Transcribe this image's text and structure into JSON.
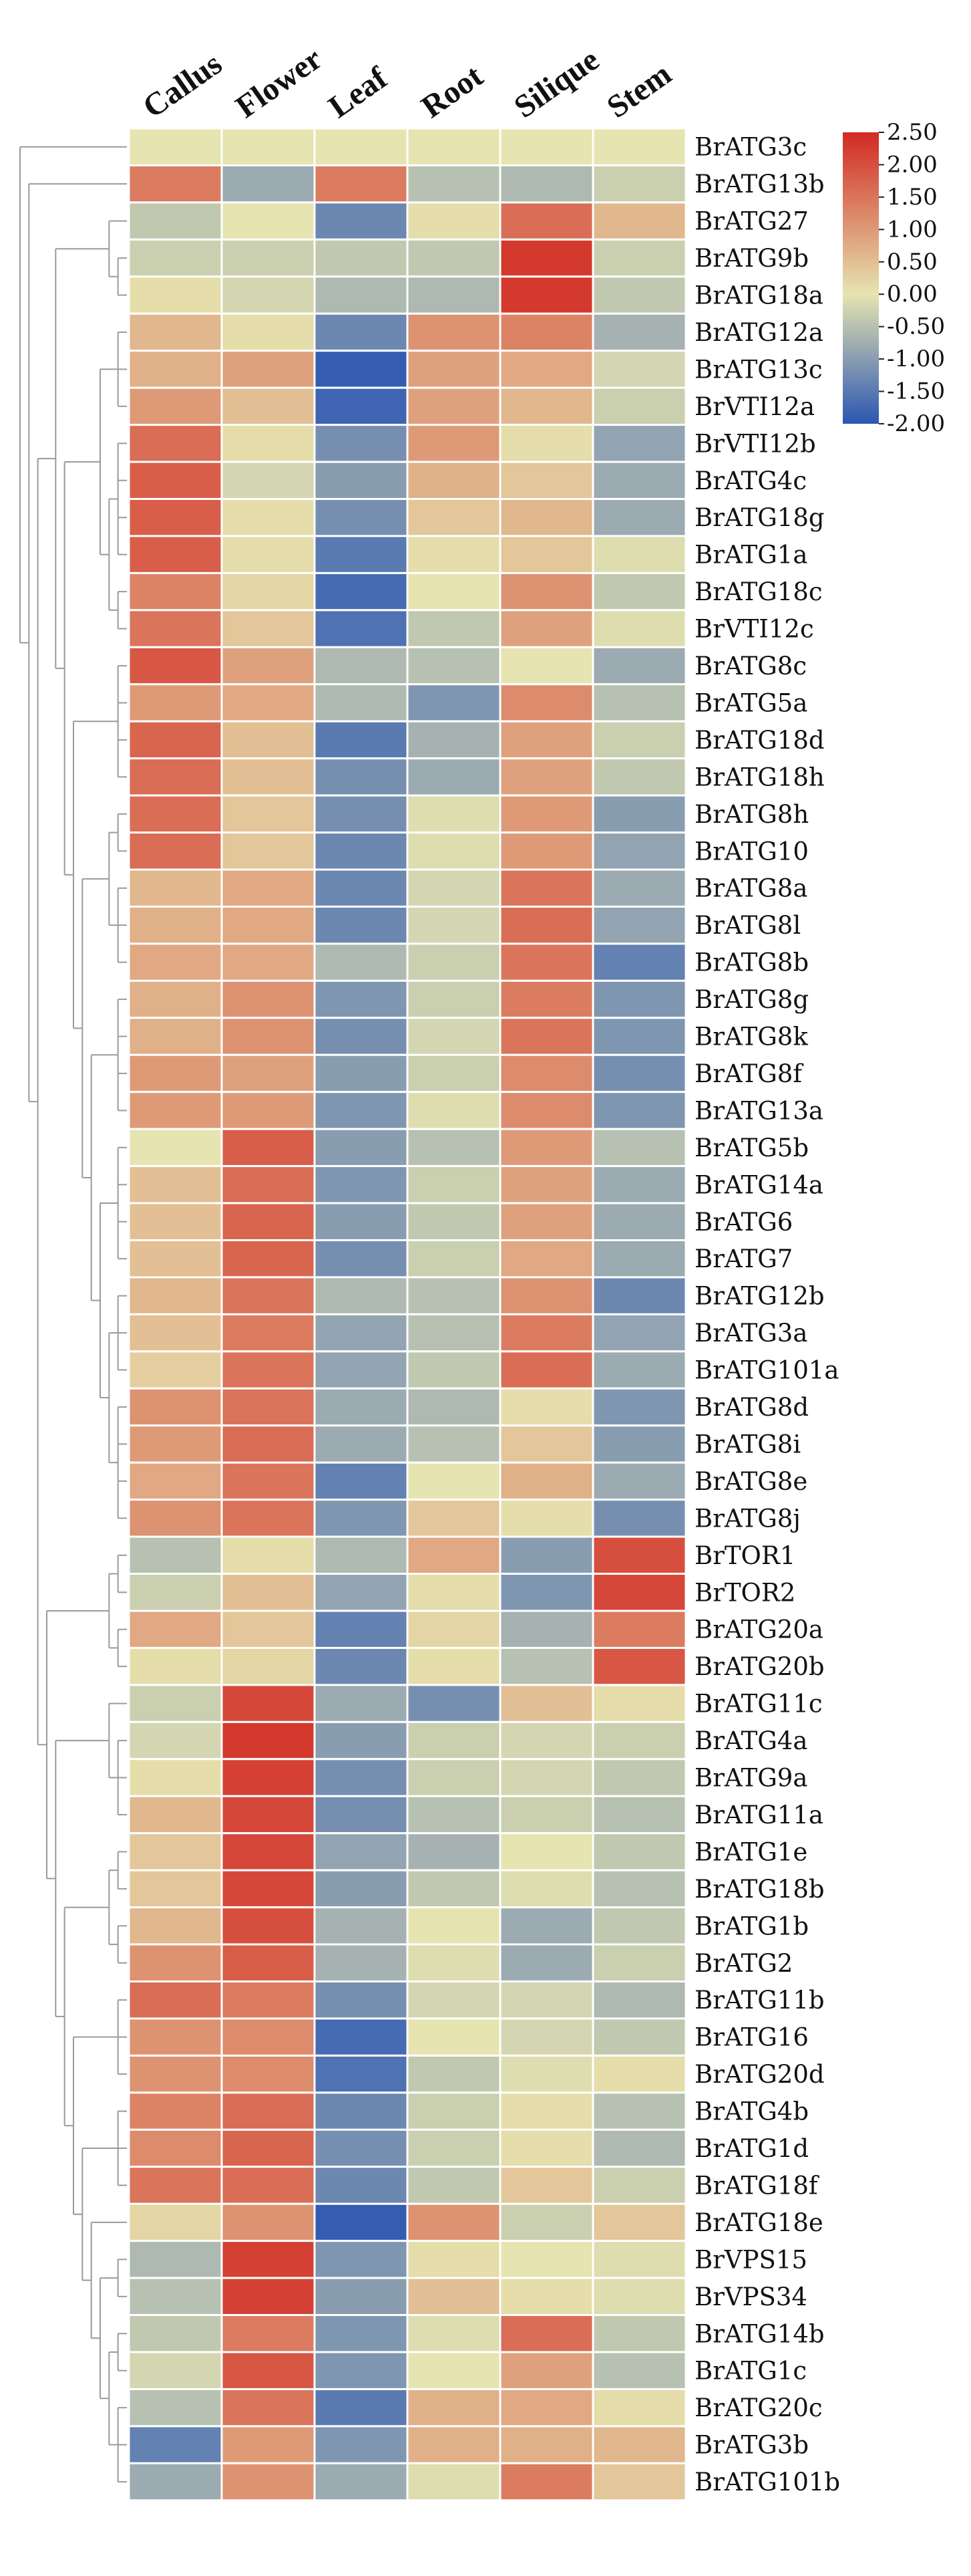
{
  "chart_data": {
    "type": "heatmap",
    "title": "",
    "columns": [
      "Callus",
      "Flower",
      "Leaf",
      "Root",
      "Silique",
      "Stem"
    ],
    "rows": [
      "BrATG3c",
      "BrATG13b",
      "BrATG27",
      "BrATG9b",
      "BrATG18a",
      "BrATG12a",
      "BrATG13c",
      "BrVTI12a",
      "BrVTI12b",
      "BrATG4c",
      "BrATG18g",
      "BrATG1a",
      "BrATG18c",
      "BrVTI12c",
      "BrATG8c",
      "BrATG5a",
      "BrATG18d",
      "BrATG18h",
      "BrATG8h",
      "BrATG10",
      "BrATG8a",
      "BrATG8l",
      "BrATG8b",
      "BrATG8g",
      "BrATG8k",
      "BrATG8f",
      "BrATG13a",
      "BrATG5b",
      "BrATG14a",
      "BrATG6",
      "BrATG7",
      "BrATG12b",
      "BrATG3a",
      "BrATG101a",
      "BrATG8d",
      "BrATG8i",
      "BrATG8e",
      "BrATG8j",
      "BrTOR1",
      "BrTOR2",
      "BrATG20a",
      "BrATG20b",
      "BrATG11c",
      "BrATG4a",
      "BrATG9a",
      "BrATG11a",
      "BrATG1e",
      "BrATG18b",
      "BrATG1b",
      "BrATG2",
      "BrATG11b",
      "BrATG16",
      "BrATG20d",
      "BrATG4b",
      "BrATG1d",
      "BrATG18f",
      "BrATG18e",
      "BrVPS15",
      "BrVPS34",
      "BrATG14b",
      "BrATG1c",
      "BrATG20c",
      "BrATG3b",
      "BrATG101b"
    ],
    "values": [
      [
        0.0,
        0.0,
        0.0,
        0.0,
        0.0,
        0.0
      ],
      [
        1.4,
        -0.8,
        1.4,
        -0.5,
        -0.6,
        -0.3
      ],
      [
        -0.4,
        0.0,
        -1.3,
        0.1,
        1.6,
        0.6
      ],
      [
        -0.3,
        -0.3,
        -0.4,
        -0.4,
        2.3,
        -0.3
      ],
      [
        0.1,
        -0.2,
        -0.6,
        -0.6,
        2.3,
        -0.4
      ],
      [
        0.6,
        0.1,
        -1.3,
        1.1,
        1.3,
        -0.7
      ],
      [
        0.7,
        0.9,
        -1.9,
        0.9,
        0.8,
        -0.2
      ],
      [
        1.0,
        0.5,
        -1.8,
        0.9,
        0.6,
        -0.3
      ],
      [
        1.6,
        0.1,
        -1.2,
        1.0,
        0.1,
        -0.9
      ],
      [
        1.8,
        -0.2,
        -1.0,
        0.7,
        0.4,
        -0.8
      ],
      [
        1.8,
        0.1,
        -1.2,
        0.4,
        0.6,
        -0.8
      ],
      [
        1.8,
        0.1,
        -1.5,
        0.1,
        0.4,
        -0.1
      ],
      [
        1.3,
        0.2,
        -1.7,
        0.0,
        1.1,
        -0.4
      ],
      [
        1.5,
        0.4,
        -1.6,
        -0.4,
        0.9,
        -0.1
      ],
      [
        1.9,
        0.9,
        -0.6,
        -0.5,
        0.0,
        -0.8
      ],
      [
        1.0,
        0.8,
        -0.6,
        -1.1,
        1.2,
        -0.5
      ],
      [
        1.7,
        0.5,
        -1.5,
        -0.7,
        0.9,
        -0.3
      ],
      [
        1.6,
        0.5,
        -1.2,
        -0.8,
        0.9,
        -0.4
      ],
      [
        1.6,
        0.4,
        -1.2,
        -0.1,
        1.0,
        -1.0
      ],
      [
        1.6,
        0.4,
        -1.3,
        -0.1,
        1.0,
        -0.9
      ],
      [
        0.6,
        0.8,
        -1.3,
        -0.2,
        1.5,
        -0.8
      ],
      [
        0.7,
        0.8,
        -1.3,
        -0.2,
        1.6,
        -0.9
      ],
      [
        0.8,
        0.8,
        -0.6,
        -0.3,
        1.5,
        -1.4
      ],
      [
        0.7,
        1.1,
        -1.1,
        -0.3,
        1.4,
        -1.1
      ],
      [
        0.7,
        1.1,
        -1.2,
        -0.2,
        1.5,
        -1.1
      ],
      [
        1.0,
        0.9,
        -1.0,
        -0.3,
        1.2,
        -1.2
      ],
      [
        1.0,
        1.0,
        -1.1,
        -0.1,
        1.2,
        -1.1
      ],
      [
        0.0,
        1.8,
        -1.0,
        -0.5,
        1.0,
        -0.5
      ],
      [
        0.5,
        1.6,
        -1.1,
        -0.3,
        0.9,
        -0.8
      ],
      [
        0.5,
        1.7,
        -1.0,
        -0.4,
        0.9,
        -0.8
      ],
      [
        0.5,
        1.7,
        -1.2,
        -0.3,
        0.8,
        -0.8
      ],
      [
        0.6,
        1.5,
        -0.6,
        -0.5,
        1.1,
        -1.3
      ],
      [
        0.5,
        1.4,
        -0.9,
        -0.5,
        1.4,
        -0.9
      ],
      [
        0.3,
        1.5,
        -0.9,
        -0.4,
        1.6,
        -0.8
      ],
      [
        1.1,
        1.5,
        -0.8,
        -0.6,
        0.1,
        -1.1
      ],
      [
        1.0,
        1.6,
        -0.8,
        -0.5,
        0.4,
        -1.0
      ],
      [
        0.8,
        1.5,
        -1.4,
        0.0,
        0.7,
        -0.8
      ],
      [
        1.1,
        1.5,
        -1.1,
        0.4,
        0.1,
        -1.2
      ],
      [
        -0.5,
        0.1,
        -0.6,
        0.8,
        -1.0,
        2.0
      ],
      [
        -0.3,
        0.5,
        -0.9,
        0.1,
        -1.1,
        2.1
      ],
      [
        0.8,
        0.4,
        -1.4,
        0.2,
        -0.7,
        1.4
      ],
      [
        0.1,
        0.2,
        -1.3,
        0.1,
        -0.5,
        1.9
      ],
      [
        -0.3,
        2.1,
        -0.8,
        -1.2,
        0.5,
        0.1
      ],
      [
        -0.2,
        2.3,
        -1.0,
        -0.3,
        -0.2,
        -0.3
      ],
      [
        0.1,
        2.2,
        -1.2,
        -0.3,
        -0.2,
        -0.4
      ],
      [
        0.6,
        2.1,
        -1.2,
        -0.5,
        -0.3,
        -0.5
      ],
      [
        0.4,
        2.1,
        -0.9,
        -0.7,
        0.0,
        -0.4
      ],
      [
        0.4,
        2.1,
        -1.0,
        -0.4,
        -0.1,
        -0.5
      ],
      [
        0.6,
        2.0,
        -0.7,
        0.0,
        -0.8,
        -0.4
      ],
      [
        1.1,
        1.8,
        -0.7,
        -0.1,
        -0.8,
        -0.3
      ],
      [
        1.6,
        1.4,
        -1.2,
        -0.2,
        -0.2,
        -0.6
      ],
      [
        1.1,
        1.2,
        -1.7,
        0.0,
        -0.2,
        -0.4
      ],
      [
        1.1,
        1.2,
        -1.6,
        -0.4,
        -0.1,
        0.1
      ],
      [
        1.3,
        1.6,
        -1.3,
        -0.3,
        0.1,
        -0.5
      ],
      [
        1.2,
        1.7,
        -1.2,
        -0.3,
        0.1,
        -0.6
      ],
      [
        1.5,
        1.6,
        -1.3,
        -0.4,
        0.4,
        -0.3
      ],
      [
        0.2,
        1.1,
        -1.9,
        1.1,
        -0.3,
        0.4
      ],
      [
        -0.6,
        2.2,
        -1.1,
        0.1,
        0.0,
        -0.1
      ],
      [
        -0.5,
        2.2,
        -1.0,
        0.5,
        0.1,
        -0.1
      ],
      [
        -0.4,
        1.4,
        -1.1,
        -0.1,
        1.6,
        -0.4
      ],
      [
        -0.2,
        1.9,
        -1.1,
        0.0,
        0.9,
        -0.5
      ],
      [
        -0.5,
        1.5,
        -1.5,
        0.7,
        0.8,
        0.1
      ],
      [
        -1.4,
        1.0,
        -1.1,
        0.7,
        0.7,
        0.6
      ],
      [
        -0.8,
        1.1,
        -0.8,
        -0.1,
        1.4,
        0.4
      ]
    ],
    "color_scale": {
      "min": -2.0,
      "max": 2.5,
      "colors": [
        "#2b56b2",
        "#e6e4b0",
        "#d22a22"
      ],
      "ticks": [
        "2.50",
        "2.00",
        "1.50",
        "1.00",
        "0.50",
        "0.00",
        "-0.50",
        "-1.00",
        "-1.50",
        "-2.00"
      ]
    },
    "cluster": "hierarchical (rows)",
    "xlabel": "",
    "ylabel": ""
  }
}
